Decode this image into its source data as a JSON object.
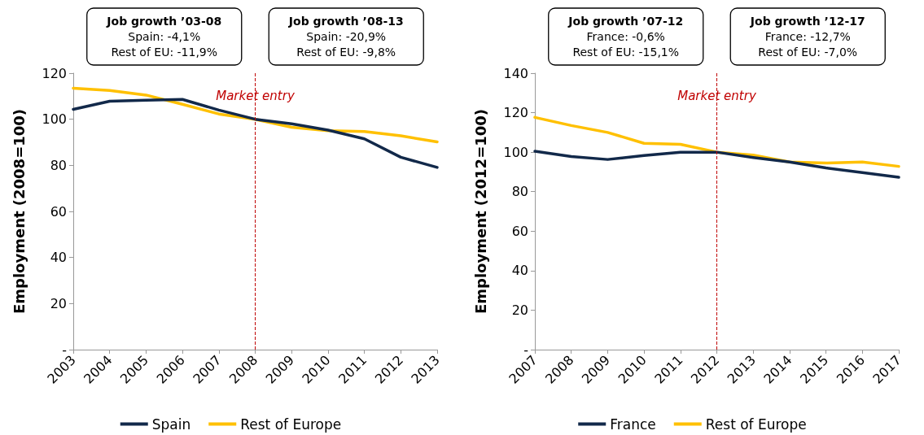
{
  "chart_data": [
    {
      "type": "line",
      "ylabel": "Employment (2008=100)",
      "categories": [
        "2003",
        "2004",
        "2005",
        "2006",
        "2007",
        "2008",
        "2009",
        "2010",
        "2011",
        "2012",
        "2013"
      ],
      "series": [
        {
          "name": "Spain",
          "color": "#12294a",
          "values": [
            104.3,
            107.8,
            108.3,
            108.6,
            104,
            100,
            98,
            95.3,
            91.5,
            83.5,
            79.1
          ]
        },
        {
          "name": "Rest of Europe",
          "color": "#ffc000",
          "values": [
            113.5,
            112.5,
            110.5,
            106.5,
            102.3,
            100,
            96.5,
            95,
            94.7,
            92.8,
            90.2
          ]
        }
      ],
      "ylim": [
        0,
        120
      ],
      "yticks": [
        {
          "value": 0,
          "label": "-"
        },
        20,
        40,
        60,
        80,
        100,
        120
      ],
      "grid": false,
      "legend": "bottom",
      "marker": "none",
      "line_style": "solid",
      "ref_lines": [
        {
          "axis": "x",
          "value": "2008",
          "label": "Market entry",
          "color": "#c00000",
          "line_style": "dashed"
        }
      ],
      "annotations": [
        "Job growth ’03-08\nSpain: -4,1%\nRest of EU: -11,9%",
        "Job growth ’08-13\nSpain: -20,9%\nRest of EU: -9,8%"
      ]
    },
    {
      "type": "line",
      "ylabel": "Employment (2012=100)",
      "categories": [
        "2007",
        "2008",
        "2009",
        "2010",
        "2011",
        "2012",
        "2013",
        "2014",
        "2015",
        "2016",
        "2017"
      ],
      "series": [
        {
          "name": "France",
          "color": "#12294a",
          "values": [
            100.5,
            97.8,
            96.3,
            98.3,
            100,
            100,
            97.3,
            95,
            92,
            89.7,
            87.3
          ]
        },
        {
          "name": "Rest of Europe",
          "color": "#ffc000",
          "values": [
            117.6,
            113.5,
            110,
            104.5,
            104,
            100,
            98.5,
            95,
            94.5,
            95,
            92.8
          ]
        }
      ],
      "ylim": [
        0,
        140
      ],
      "yticks": [
        {
          "value": 0,
          "label": "-"
        },
        20,
        40,
        60,
        80,
        100,
        120,
        140
      ],
      "grid": false,
      "legend": "bottom",
      "marker": "none",
      "line_style": "solid",
      "ref_lines": [
        {
          "axis": "x",
          "value": "2012",
          "label": "Market entry",
          "color": "#c00000",
          "line_style": "dashed"
        }
      ],
      "annotations": [
        "Job growth ’07-12\nFrance: -0,6%\nRest of EU: -15,1%",
        "Job growth ’12-17\nFrance: -12,7%\nRest of EU: -7,0%"
      ]
    }
  ]
}
